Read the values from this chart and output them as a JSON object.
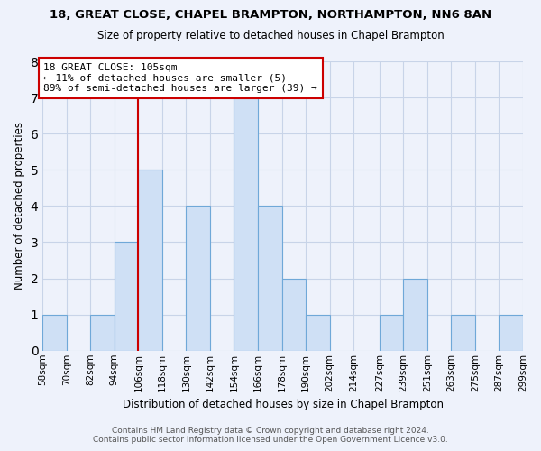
{
  "title1": "18, GREAT CLOSE, CHAPEL BRAMPTON, NORTHAMPTON, NN6 8AN",
  "title2": "Size of property relative to detached houses in Chapel Brampton",
  "xlabel": "Distribution of detached houses by size in Chapel Brampton",
  "ylabel": "Number of detached properties",
  "bar_edges": [
    58,
    70,
    82,
    94,
    106,
    118,
    130,
    142,
    154,
    166,
    178,
    190,
    202,
    214,
    227,
    239,
    251,
    263,
    275,
    287,
    299
  ],
  "bar_heights": [
    1,
    0,
    1,
    3,
    5,
    0,
    4,
    0,
    7,
    4,
    2,
    1,
    0,
    0,
    1,
    2,
    0,
    1,
    0,
    1
  ],
  "bar_color": "#cfe0f5",
  "bar_edgecolor": "#6fa8d8",
  "reference_line_x": 106,
  "reference_line_color": "#cc0000",
  "annotation_text": "18 GREAT CLOSE: 105sqm\n← 11% of detached houses are smaller (5)\n89% of semi-detached houses are larger (39) →",
  "annotation_box_edgecolor": "#cc0000",
  "annotation_box_facecolor": "white",
  "ylim": [
    0,
    8
  ],
  "yticks": [
    0,
    1,
    2,
    3,
    4,
    5,
    6,
    7,
    8
  ],
  "tick_labels": [
    "58sqm",
    "70sqm",
    "82sqm",
    "94sqm",
    "106sqm",
    "118sqm",
    "130sqm",
    "142sqm",
    "154sqm",
    "166sqm",
    "178sqm",
    "190sqm",
    "202sqm",
    "214sqm",
    "227sqm",
    "239sqm",
    "251sqm",
    "263sqm",
    "275sqm",
    "287sqm",
    "299sqm"
  ],
  "footer1": "Contains HM Land Registry data © Crown copyright and database right 2024.",
  "footer2": "Contains public sector information licensed under the Open Government Licence v3.0.",
  "bg_color": "#eef2fb",
  "grid_color": "#c8d4e8",
  "fig_width": 6.0,
  "fig_height": 5.0,
  "dpi": 100
}
